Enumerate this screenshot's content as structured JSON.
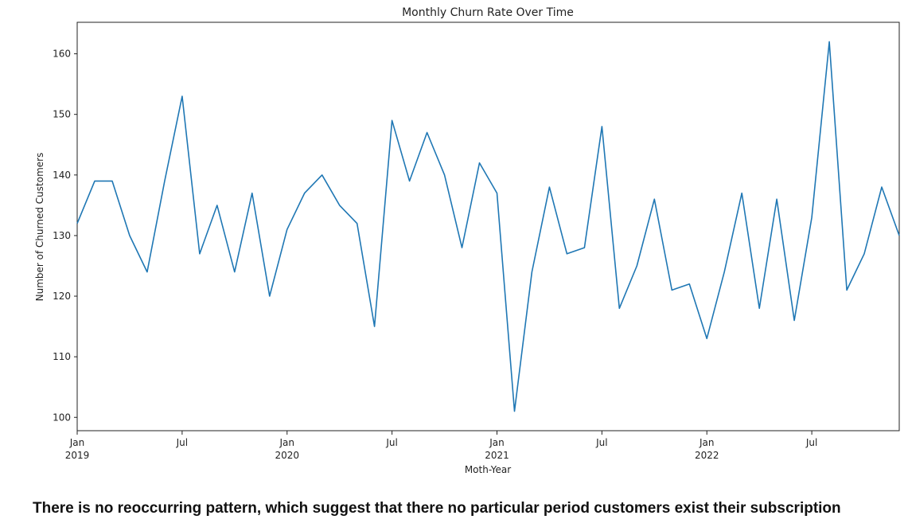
{
  "chart_data": {
    "type": "line",
    "title": "Monthly Churn Rate Over Time",
    "xlabel": "Moth-Year",
    "ylabel": "Number of Churned Customers",
    "x": [
      "2019-01",
      "2019-02",
      "2019-03",
      "2019-04",
      "2019-05",
      "2019-06",
      "2019-07",
      "2019-08",
      "2019-09",
      "2019-10",
      "2019-11",
      "2019-12",
      "2020-01",
      "2020-02",
      "2020-03",
      "2020-04",
      "2020-05",
      "2020-06",
      "2020-07",
      "2020-08",
      "2020-09",
      "2020-10",
      "2020-11",
      "2020-12",
      "2021-01",
      "2021-02",
      "2021-03",
      "2021-04",
      "2021-05",
      "2021-06",
      "2021-07",
      "2021-08",
      "2021-09",
      "2021-10",
      "2021-11",
      "2021-12",
      "2022-01",
      "2022-02",
      "2022-03",
      "2022-04",
      "2022-05",
      "2022-06",
      "2022-07",
      "2022-08",
      "2022-09",
      "2022-10",
      "2022-11",
      "2022-12"
    ],
    "series": [
      {
        "name": "",
        "color": "#1f77b4",
        "values": [
          132,
          139,
          139,
          130,
          124,
          139,
          153,
          127,
          135,
          124,
          137,
          120,
          131,
          137,
          140,
          135,
          132,
          115,
          149,
          139,
          147,
          140,
          128,
          142,
          137,
          101,
          124,
          138,
          127,
          128,
          148,
          118,
          125,
          136,
          121,
          122,
          113,
          124,
          137,
          118,
          136,
          116,
          133,
          162,
          121,
          127,
          138,
          130
        ]
      }
    ],
    "ylim": [
      97.8,
      165.2
    ],
    "yticks": [
      100,
      110,
      120,
      130,
      140,
      150,
      160
    ],
    "xticks": [
      {
        "at": "2019-01",
        "label": "Jan",
        "year": "2019"
      },
      {
        "at": "2019-07",
        "label": "Jul",
        "year": ""
      },
      {
        "at": "2020-01",
        "label": "Jan",
        "year": "2020"
      },
      {
        "at": "2020-07",
        "label": "Jul",
        "year": ""
      },
      {
        "at": "2021-01",
        "label": "Jan",
        "year": "2021"
      },
      {
        "at": "2021-07",
        "label": "Jul",
        "year": ""
      },
      {
        "at": "2022-01",
        "label": "Jan",
        "year": "2022"
      },
      {
        "at": "2022-07",
        "label": "Jul",
        "year": ""
      }
    ],
    "grid": false
  },
  "caption": "There is no reoccurring pattern, which suggest that there no particular period customers exist their subscription"
}
